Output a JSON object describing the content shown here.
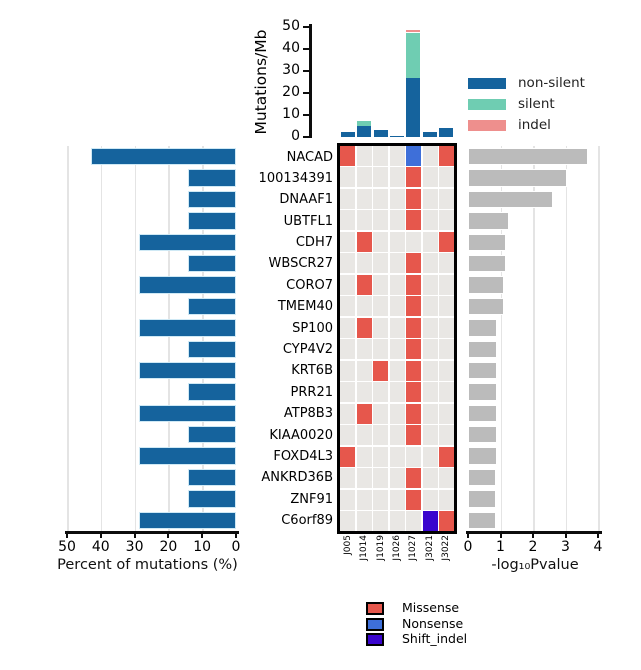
{
  "genes": [
    "NACAD",
    "100134391",
    "DNAAF1",
    "UBTFL1",
    "CDH7",
    "WBSCR27",
    "CORO7",
    "TMEM40",
    "SP100",
    "CYP4V2",
    "KRT6B",
    "PRR21",
    "ATP8B3",
    "KIAA0020",
    "FOXD4L3",
    "ANKRD36B",
    "ZNF91",
    "C6orf89"
  ],
  "samples": [
    "J005",
    "J1014",
    "J1019",
    "J1026",
    "J1027",
    "J3021",
    "J3022"
  ],
  "colors": {
    "non_silent": "#15639D",
    "silent": "#6FCDB2",
    "indel": "#EE8F8D",
    "missense": "#E6574C",
    "nonsense": "#3E6FD9",
    "shift_indel": "#3A05CE",
    "left_bar": "#15639D",
    "left_bar_edge": "#CFE9F5",
    "right_bar": "#BBBBBB",
    "heatmap_bg": "#E9E7E4",
    "grid": "#E4E4E4",
    "axis": "#0D0D0D"
  },
  "chart_data": [
    {
      "id": "top",
      "type": "bar",
      "stacked": true,
      "title": "",
      "ylabel": "Mutations/Mb",
      "yticks": [
        0,
        10,
        20,
        30,
        40,
        50
      ],
      "ylim": [
        0,
        50
      ],
      "grid": false,
      "categories": [
        "J005",
        "J1014",
        "J1019",
        "J1026",
        "J1027",
        "J3021",
        "J3022"
      ],
      "series": [
        {
          "name": "non-silent",
          "color": "#15639D",
          "values": [
            2.5,
            5,
            3,
            0.5,
            27,
            2.5,
            4
          ]
        },
        {
          "name": "silent",
          "color": "#6FCDB2",
          "values": [
            0,
            2.5,
            0,
            0,
            20.5,
            0,
            0
          ]
        },
        {
          "name": "indel",
          "color": "#EE8F8D",
          "values": [
            0,
            0,
            0,
            0,
            1,
            0,
            0
          ]
        }
      ],
      "legend_position": "right"
    },
    {
      "id": "left",
      "type": "bar",
      "orientation": "horizontal",
      "inverted_axis": true,
      "xlabel": "Percent of mutations (%)",
      "xticks": [
        50,
        40,
        30,
        20,
        10,
        0
      ],
      "xlim": [
        0,
        50
      ],
      "grid": true,
      "categories": [
        "NACAD",
        "100134391",
        "DNAAF1",
        "UBTFL1",
        "CDH7",
        "WBSCR27",
        "CORO7",
        "TMEM40",
        "SP100",
        "CYP4V2",
        "KRT6B",
        "PRR21",
        "ATP8B3",
        "KIAA0020",
        "FOXD4L3",
        "ANKRD36B",
        "ZNF91",
        "C6orf89"
      ],
      "values": [
        42.9,
        14.3,
        14.3,
        14.3,
        28.6,
        14.3,
        28.6,
        14.3,
        28.6,
        14.3,
        28.6,
        14.3,
        28.6,
        14.3,
        28.6,
        14.3,
        14.3,
        28.6
      ]
    },
    {
      "id": "heatmap",
      "type": "heatmap",
      "rows": [
        "NACAD",
        "100134391",
        "DNAAF1",
        "UBTFL1",
        "CDH7",
        "WBSCR27",
        "CORO7",
        "TMEM40",
        "SP100",
        "CYP4V2",
        "KRT6B",
        "PRR21",
        "ATP8B3",
        "KIAA0020",
        "FOXD4L3",
        "ANKRD36B",
        "ZNF91",
        "C6orf89"
      ],
      "columns": [
        "J005",
        "J1014",
        "J1019",
        "J1026",
        "J1027",
        "J3021",
        "J3022"
      ],
      "mutation_colors": {
        "Missense": "#E6574C",
        "Nonsense": "#3E6FD9",
        "Shift_indel": "#3A05CE"
      },
      "cells": [
        {
          "gene": "NACAD",
          "sample": "J005",
          "type": "Missense"
        },
        {
          "gene": "NACAD",
          "sample": "J1027",
          "type": "Nonsense"
        },
        {
          "gene": "NACAD",
          "sample": "J3022",
          "type": "Missense"
        },
        {
          "gene": "100134391",
          "sample": "J1027",
          "type": "Missense"
        },
        {
          "gene": "DNAAF1",
          "sample": "J1027",
          "type": "Missense"
        },
        {
          "gene": "UBTFL1",
          "sample": "J1027",
          "type": "Missense"
        },
        {
          "gene": "CDH7",
          "sample": "J1014",
          "type": "Missense"
        },
        {
          "gene": "CDH7",
          "sample": "J3022",
          "type": "Missense"
        },
        {
          "gene": "WBSCR27",
          "sample": "J1027",
          "type": "Missense"
        },
        {
          "gene": "CORO7",
          "sample": "J1014",
          "type": "Missense"
        },
        {
          "gene": "CORO7",
          "sample": "J1027",
          "type": "Missense"
        },
        {
          "gene": "TMEM40",
          "sample": "J1027",
          "type": "Missense"
        },
        {
          "gene": "SP100",
          "sample": "J1014",
          "type": "Missense"
        },
        {
          "gene": "SP100",
          "sample": "J1027",
          "type": "Missense"
        },
        {
          "gene": "CYP4V2",
          "sample": "J1027",
          "type": "Missense"
        },
        {
          "gene": "KRT6B",
          "sample": "J1019",
          "type": "Missense"
        },
        {
          "gene": "KRT6B",
          "sample": "J1027",
          "type": "Missense"
        },
        {
          "gene": "PRR21",
          "sample": "J1027",
          "type": "Missense"
        },
        {
          "gene": "ATP8B3",
          "sample": "J1014",
          "type": "Missense"
        },
        {
          "gene": "ATP8B3",
          "sample": "J1027",
          "type": "Missense"
        },
        {
          "gene": "KIAA0020",
          "sample": "J1027",
          "type": "Missense"
        },
        {
          "gene": "FOXD4L3",
          "sample": "J005",
          "type": "Missense"
        },
        {
          "gene": "FOXD4L3",
          "sample": "J3022",
          "type": "Missense"
        },
        {
          "gene": "ANKRD36B",
          "sample": "J1027",
          "type": "Missense"
        },
        {
          "gene": "ZNF91",
          "sample": "J1027",
          "type": "Missense"
        },
        {
          "gene": "C6orf89",
          "sample": "J3021",
          "type": "Shift_indel"
        },
        {
          "gene": "C6orf89",
          "sample": "J3022",
          "type": "Missense"
        }
      ]
    },
    {
      "id": "right",
      "type": "bar",
      "orientation": "horizontal",
      "xlabel": "-log₁₀Pvalue",
      "xticks": [
        0,
        1,
        2,
        3,
        4
      ],
      "xlim": [
        0,
        4
      ],
      "grid": true,
      "categories": [
        "NACAD",
        "100134391",
        "DNAAF1",
        "UBTFL1",
        "CDH7",
        "WBSCR27",
        "CORO7",
        "TMEM40",
        "SP100",
        "CYP4V2",
        "KRT6B",
        "PRR21",
        "ATP8B3",
        "KIAA0020",
        "FOXD4L3",
        "ANKRD36B",
        "ZNF91",
        "C6orf89"
      ],
      "values": [
        3.7,
        3.05,
        2.6,
        1.25,
        1.17,
        1.17,
        1.11,
        1.11,
        0.9,
        0.9,
        0.9,
        0.9,
        0.9,
        0.9,
        0.9,
        0.85,
        0.85,
        0.85
      ]
    }
  ],
  "legends": {
    "top": [
      {
        "label": "non-silent",
        "color": "#15639D"
      },
      {
        "label": "silent",
        "color": "#6FCDB2"
      },
      {
        "label": "indel",
        "color": "#EE8F8D"
      }
    ],
    "bottom": [
      {
        "label": "Missense",
        "color": "#E6574C"
      },
      {
        "label": "Nonsense",
        "color": "#3E6FD9"
      },
      {
        "label": "Shift_indel",
        "color": "#3A05CE"
      }
    ]
  }
}
